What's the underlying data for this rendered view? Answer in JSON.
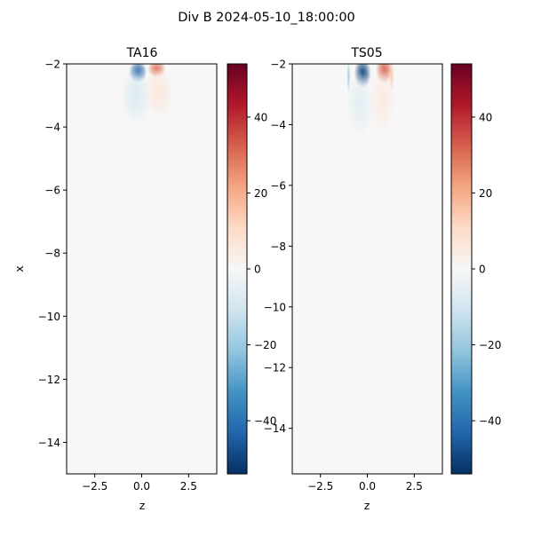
{
  "figure": {
    "suptitle": "Div B 2024-05-10_18:00:00"
  },
  "colors": {
    "negative": "#053061",
    "neutral": "#f7f7f7",
    "positive": "#67001f",
    "field_background": "#f7f7f7",
    "axis": "#000000"
  },
  "chart_data": [
    {
      "type": "heatmap",
      "title": "TA16",
      "xlabel": "z",
      "ylabel": "x",
      "xlim": [
        -4,
        4
      ],
      "ylim": [
        -15,
        -2
      ],
      "xticks": [
        -2.5,
        0.0,
        2.5
      ],
      "xtick_labels": [
        "−2.5",
        "0.0",
        "2.5"
      ],
      "yticks": [
        -2,
        -4,
        -6,
        -8,
        -10,
        -12,
        -14
      ],
      "ytick_labels": [
        "−2",
        "−4",
        "−6",
        "−8",
        "−10",
        "−12",
        "−14"
      ],
      "colorbar": {
        "vmin": -54,
        "vmax": 54,
        "ticks": [
          -40,
          -20,
          0,
          20,
          40
        ],
        "tick_labels": [
          "−40",
          "−20",
          "0",
          "20",
          "40"
        ]
      },
      "features": [
        {
          "z": -0.2,
          "x": -2.25,
          "sz": 0.3,
          "sx": 0.22,
          "value": -45
        },
        {
          "z": 0.8,
          "x": -2.15,
          "sz": 0.3,
          "sx": 0.18,
          "value": 28
        },
        {
          "z": -0.3,
          "x": -3.0,
          "sz": 0.5,
          "sx": 0.6,
          "value": -8
        },
        {
          "z": 0.9,
          "x": -2.9,
          "sz": 0.5,
          "sx": 0.5,
          "value": 6
        }
      ]
    },
    {
      "type": "heatmap",
      "title": "TS05",
      "xlabel": "z",
      "ylabel": "",
      "xlim": [
        -4,
        4
      ],
      "ylim": [
        -15.5,
        -2
      ],
      "xticks": [
        -2.5,
        0.0,
        2.5
      ],
      "xtick_labels": [
        "−2.5",
        "0.0",
        "2.5"
      ],
      "yticks": [
        -2,
        -4,
        -6,
        -8,
        -10,
        -12,
        -14
      ],
      "ytick_labels": [
        "−2",
        "−4",
        "−6",
        "−8",
        "−10",
        "−12",
        "−14"
      ],
      "colorbar": {
        "vmin": -54,
        "vmax": 54,
        "ticks": [
          -40,
          -20,
          0,
          20,
          40
        ],
        "tick_labels": [
          "−40",
          "−20",
          "0",
          "20",
          "40"
        ]
      },
      "features": [
        {
          "z": -0.25,
          "x": -2.3,
          "sz": 0.28,
          "sx": 0.3,
          "value": -50
        },
        {
          "z": 0.9,
          "x": -2.2,
          "sz": 0.28,
          "sx": 0.28,
          "value": 32
        },
        {
          "z": -1.0,
          "x": -2.4,
          "sz": 0.06,
          "sx": 0.35,
          "value": -18
        },
        {
          "z": 1.3,
          "x": -2.4,
          "sz": 0.08,
          "sx": 0.35,
          "value": 14
        },
        {
          "z": -0.4,
          "x": -3.3,
          "sz": 0.45,
          "sx": 0.7,
          "value": -6
        },
        {
          "z": 0.8,
          "x": -3.2,
          "sz": 0.45,
          "sx": 0.7,
          "value": 5
        }
      ]
    }
  ]
}
